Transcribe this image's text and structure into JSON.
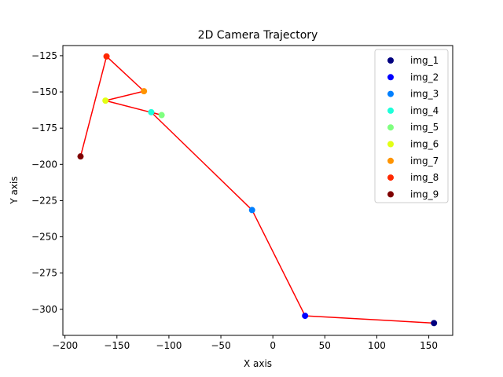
{
  "chart_data": {
    "type": "scatter",
    "title": "2D Camera Trajectory",
    "xlabel": "X axis",
    "ylabel": "Y axis",
    "xlim": [
      -202,
      173
    ],
    "ylim": [
      -318,
      -118
    ],
    "xticks": [
      -200,
      -150,
      -100,
      -50,
      0,
      50,
      100,
      150
    ],
    "yticks": [
      -125,
      -150,
      -175,
      -200,
      -225,
      -250,
      -275,
      -300
    ],
    "grid": false,
    "legend_position": "top-right",
    "line_color": "#ff0000",
    "points": [
      {
        "name": "img_1",
        "x": 155,
        "y": -309.5,
        "color": "#00007f"
      },
      {
        "name": "img_2",
        "x": 31,
        "y": -304.5,
        "color": "#0000ff"
      },
      {
        "name": "img_3",
        "x": -20,
        "y": -231.5,
        "color": "#007fff"
      },
      {
        "name": "img_4",
        "x": -117,
        "y": -164,
        "color": "#1dffd9"
      },
      {
        "name": "img_5",
        "x": -107,
        "y": -166,
        "color": "#7fff7f"
      },
      {
        "name": "img_6",
        "x": -161,
        "y": -156,
        "color": "#e2ff14"
      },
      {
        "name": "img_7",
        "x": -124,
        "y": -149.5,
        "color": "#ff9400"
      },
      {
        "name": "img_8",
        "x": -160,
        "y": -125.5,
        "color": "#ff2800"
      },
      {
        "name": "img_9",
        "x": -185,
        "y": -194.5,
        "color": "#7f0000"
      }
    ]
  }
}
